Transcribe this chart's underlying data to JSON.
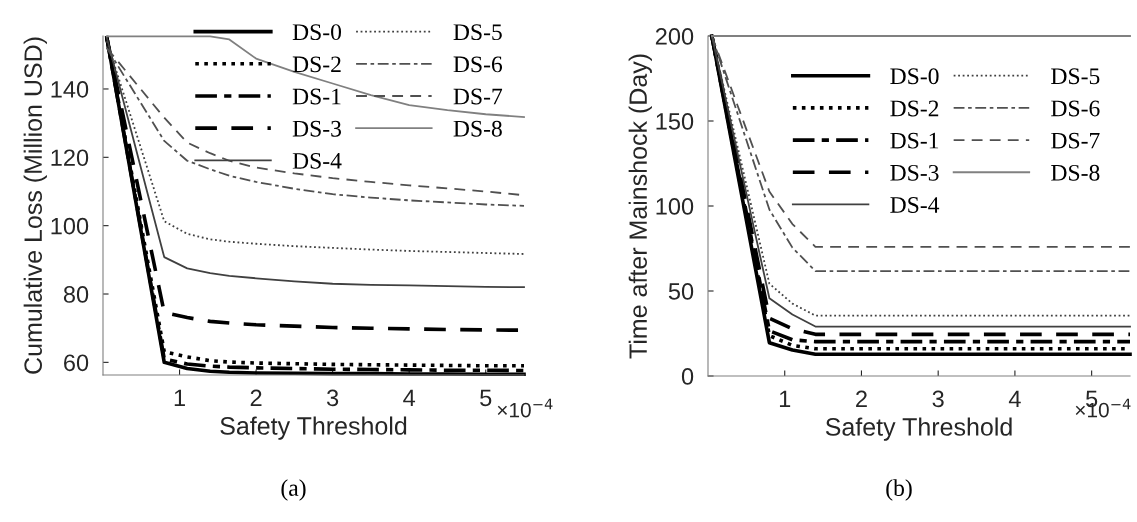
{
  "chart_data": [
    {
      "type": "line",
      "xlabel": "Safety Threshold",
      "ylabel": "Cumulative Loss (Million USD)",
      "annotations": [
        "×10$^{−4}$",
        "(a)"
      ],
      "x": [
        0.05,
        0.8,
        1.1,
        1.4,
        1.65,
        2,
        2.5,
        3,
        3.5,
        4,
        4.5,
        5,
        5.5
      ],
      "xlim": [
        0,
        5.5
      ],
      "xticks": [
        1,
        2,
        3,
        4,
        5
      ],
      "ylim": [
        56.3,
        155.5
      ],
      "yticks": [
        60,
        80,
        100,
        120,
        140
      ],
      "grid": false,
      "legend": "top right",
      "series": [
        {
          "name": "DS-0",
          "color": "#000000",
          "line_style": "solid",
          "values": [
            155,
            60,
            58.2,
            57.4,
            57.1,
            56.9,
            56.8,
            56.7,
            56.7,
            56.6,
            56.6,
            56.5,
            56.5
          ]
        },
        {
          "name": "DS-2",
          "color": "#000000",
          "line_style": "dotted",
          "values": [
            155,
            63.1,
            61.6,
            60.5,
            60.1,
            59.8,
            59.6,
            59.4,
            59.3,
            59.2,
            59.1,
            59.0,
            59.0
          ]
        },
        {
          "name": "DS-1",
          "color": "#000000",
          "line_style": "dashdot",
          "values": [
            155,
            61.0,
            59.5,
            58.9,
            58.6,
            58.4,
            58.2,
            58.0,
            57.9,
            57.8,
            57.7,
            57.7,
            57.6
          ]
        },
        {
          "name": "DS-3",
          "color": "#000000",
          "line_style": "dashed",
          "values": [
            155,
            74.6,
            73.1,
            72.0,
            71.5,
            71.0,
            70.6,
            70.2,
            70.0,
            69.8,
            69.6,
            69.5,
            69.4
          ]
        },
        {
          "name": "DS-4",
          "color": "#404040",
          "line_style": "solid",
          "values": [
            155,
            90.8,
            87.5,
            86.1,
            85.3,
            84.6,
            83.7,
            83.0,
            82.7,
            82.5,
            82.3,
            82.1,
            82.0
          ]
        },
        {
          "name": "DS-5",
          "color": "#404040",
          "line_style": "dotted",
          "values": [
            154,
            101.3,
            97.6,
            96.0,
            95.3,
            94.7,
            94.0,
            93.5,
            93.0,
            92.6,
            92.3,
            92.0,
            91.7
          ]
        },
        {
          "name": "DS-6",
          "color": "#505050",
          "line_style": "dashdot",
          "values": [
            152,
            124.8,
            119.0,
            116.5,
            114.6,
            112.8,
            110.8,
            109.2,
            108.2,
            107.4,
            106.8,
            106.2,
            105.8
          ]
        },
        {
          "name": "DS-7",
          "color": "#505050",
          "line_style": "dashed",
          "values": [
            152,
            131.6,
            124.3,
            121.2,
            119.0,
            117.0,
            115.3,
            113.9,
            112.8,
            111.8,
            110.9,
            110.0,
            108.9
          ]
        },
        {
          "name": "DS-8",
          "color": "#808080",
          "line_style": "solid",
          "values": [
            155.4,
            155.4,
            155.4,
            155.4,
            154.5,
            148.9,
            145.0,
            141.6,
            138.2,
            135.3,
            133.8,
            132.6,
            131.8
          ]
        }
      ]
    },
    {
      "type": "line",
      "xlabel": "Safety Threshold",
      "ylabel": "Time after Mainshock (Day)",
      "annotations": [
        "×10$^{−4}$",
        "(b)"
      ],
      "x": [
        0.05,
        0.8,
        1.1,
        1.4,
        2,
        3,
        4,
        5,
        5.5
      ],
      "xlim": [
        0,
        5.5
      ],
      "xticks": [
        1,
        2,
        3,
        4,
        5
      ],
      "ylim": [
        0,
        200
      ],
      "yticks": [
        0,
        50,
        100,
        150,
        200
      ],
      "grid": false,
      "legend": "top right",
      "series": [
        {
          "name": "DS-0",
          "color": "#000000",
          "line_style": "solid",
          "values": [
            200,
            19.6,
            15.3,
            12.8,
            12.8,
            12.8,
            12.8,
            12.8,
            12.8
          ]
        },
        {
          "name": "DS-2",
          "color": "#000000",
          "line_style": "dotted",
          "values": [
            200,
            23.8,
            18.0,
            16.0,
            16.0,
            16.0,
            16.0,
            16.0,
            16.0
          ]
        },
        {
          "name": "DS-1",
          "color": "#000000",
          "line_style": "dashdot",
          "values": [
            200,
            26.6,
            21.3,
            20.2,
            20.2,
            20.2,
            20.2,
            20.2,
            20.2
          ]
        },
        {
          "name": "DS-3",
          "color": "#000000",
          "line_style": "dashed",
          "values": [
            200,
            34.0,
            27.7,
            24.5,
            24.5,
            24.5,
            24.5,
            24.5,
            24.5
          ]
        },
        {
          "name": "DS-4",
          "color": "#404040",
          "line_style": "solid",
          "values": [
            200,
            45.7,
            36.2,
            29.1,
            29.1,
            29.1,
            29.1,
            29.1,
            29.1
          ]
        },
        {
          "name": "DS-5",
          "color": "#404040",
          "line_style": "dotted",
          "values": [
            200,
            54.3,
            42.6,
            35.5,
            35.5,
            35.5,
            35.5,
            35.5,
            35.5
          ]
        },
        {
          "name": "DS-6",
          "color": "#505050",
          "line_style": "dashdot",
          "values": [
            200,
            97.9,
            75.5,
            61.7,
            61.7,
            61.7,
            61.7,
            61.7,
            61.7
          ]
        },
        {
          "name": "DS-7",
          "color": "#505050",
          "line_style": "dashed",
          "values": [
            200,
            108.5,
            89.4,
            76.0,
            76.0,
            76.0,
            76.0,
            76.0,
            76.0
          ]
        },
        {
          "name": "DS-8",
          "color": "#808080",
          "line_style": "solid",
          "values": [
            200,
            200,
            200,
            200,
            200,
            200,
            200,
            200,
            200
          ]
        }
      ]
    }
  ]
}
